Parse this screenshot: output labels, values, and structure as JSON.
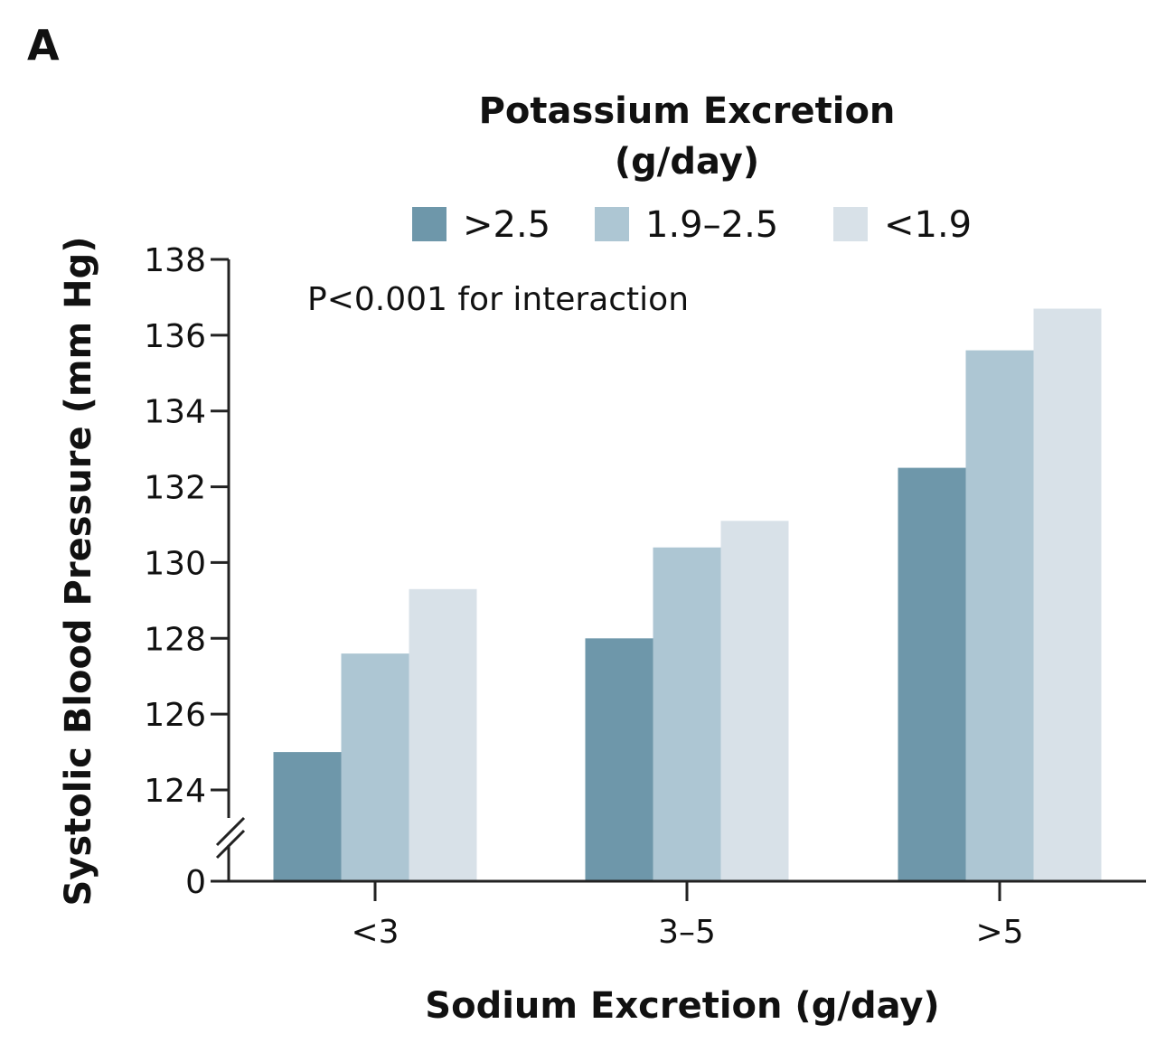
{
  "panel_label": "A",
  "chart_data": {
    "type": "bar",
    "legend_title_line1": "Potassium Excretion",
    "legend_title_line2": "(g/day)",
    "legend_placement": "top",
    "xlabel": "Sodium Excretion (g/day)",
    "ylabel": "Systolic Blood Pressure (mm Hg)",
    "annotation": "P<0.001 for interaction",
    "categories": [
      "<3",
      "3–5",
      ">5"
    ],
    "series": [
      {
        "name": ">2.5",
        "color": "#6e97aa",
        "values": [
          125.0,
          128.0,
          132.5
        ]
      },
      {
        "name": "1.9–2.5",
        "color": "#adc6d3",
        "values": [
          127.6,
          130.4,
          135.6
        ]
      },
      {
        "name": "<1.9",
        "color": "#d8e1e8",
        "values": [
          129.3,
          131.1,
          136.7
        ]
      }
    ],
    "ylim": [
      123.6,
      138
    ],
    "yticks": [
      "0",
      "124",
      "126",
      "128",
      "130",
      "132",
      "134",
      "136",
      "138"
    ],
    "axis_break": true,
    "grid": false
  }
}
